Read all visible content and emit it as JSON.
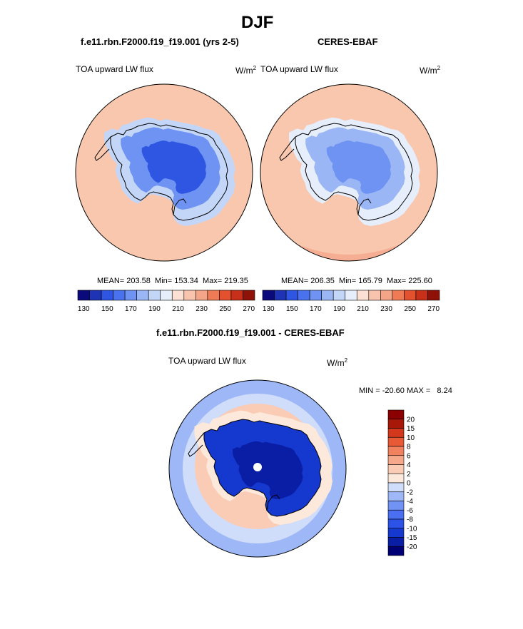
{
  "chart_data": [
    {
      "type": "heatmap",
      "projection": "south polar stereographic",
      "title": "f.e11.rbn.F2000.f19_f19.001 (yrs 2-5)",
      "variable": "TOA upward LW flux",
      "units": "W/m",
      "units_exp": "2",
      "mean_label": "MEAN= 203.58",
      "min_label": "Min= 153.34",
      "max_label": "Max= 219.35",
      "mean": 203.58,
      "min": 153.34,
      "max": 219.35,
      "colorbar_ticks": [
        "130",
        "150",
        "170",
        "190",
        "210",
        "230",
        "250",
        "270"
      ],
      "colorbar_levels": [
        130,
        140,
        150,
        160,
        170,
        180,
        190,
        200,
        210,
        220,
        230,
        240,
        250,
        260,
        270
      ]
    },
    {
      "type": "heatmap",
      "projection": "south polar stereographic",
      "title": "CERES-EBAF",
      "variable": "TOA upward LW flux",
      "units": "W/m",
      "units_exp": "2",
      "mean_label": "MEAN= 206.35",
      "min_label": "Min= 165.79",
      "max_label": "Max= 225.60",
      "mean": 206.35,
      "min": 165.79,
      "max": 225.6,
      "colorbar_ticks": [
        "130",
        "150",
        "170",
        "190",
        "210",
        "230",
        "250",
        "270"
      ],
      "colorbar_levels": [
        130,
        140,
        150,
        160,
        170,
        180,
        190,
        200,
        210,
        220,
        230,
        240,
        250,
        260,
        270
      ]
    },
    {
      "type": "heatmap",
      "projection": "south polar stereographic",
      "title": "f.e11.rbn.F2000.f19_f19.001 - CERES-EBAF",
      "variable": "TOA upward LW flux",
      "units": "W/m",
      "units_exp": "2",
      "minmax_label": "MIN = -20.60 MAX =   8.24",
      "min": -20.6,
      "max": 8.24,
      "colorbar_ticks": [
        "20",
        "15",
        "10",
        "8",
        "6",
        "4",
        "2",
        "0",
        "-2",
        "-4",
        "-6",
        "-8",
        "-10",
        "-15",
        "-20"
      ]
    }
  ],
  "page": {
    "season_title": "DJF"
  },
  "colors": {
    "abs_scale": [
      "#0a0a7c",
      "#1f33b5",
      "#2e56e3",
      "#4a72ee",
      "#6e93f2",
      "#9ab6f5",
      "#c4d6f8",
      "#e6eefb",
      "#fbe0d3",
      "#f8c4ad",
      "#f4a487",
      "#ef7a56",
      "#e4512e",
      "#c8301a",
      "#8f1208"
    ],
    "diff_scale": [
      "#000074",
      "#0a1ea5",
      "#1538cf",
      "#2d52e8",
      "#4a6ff0",
      "#7193f3",
      "#9eb8f7",
      "#cfdcfa",
      "#fde9dc",
      "#fbccb5",
      "#f6a98a",
      "#f08260",
      "#e85a36",
      "#d3381c",
      "#a81808",
      "#8b0000"
    ],
    "ocean_model": "#f9c7ae",
    "ocean_obs": "#f9c7ae",
    "coast": "#000000"
  }
}
